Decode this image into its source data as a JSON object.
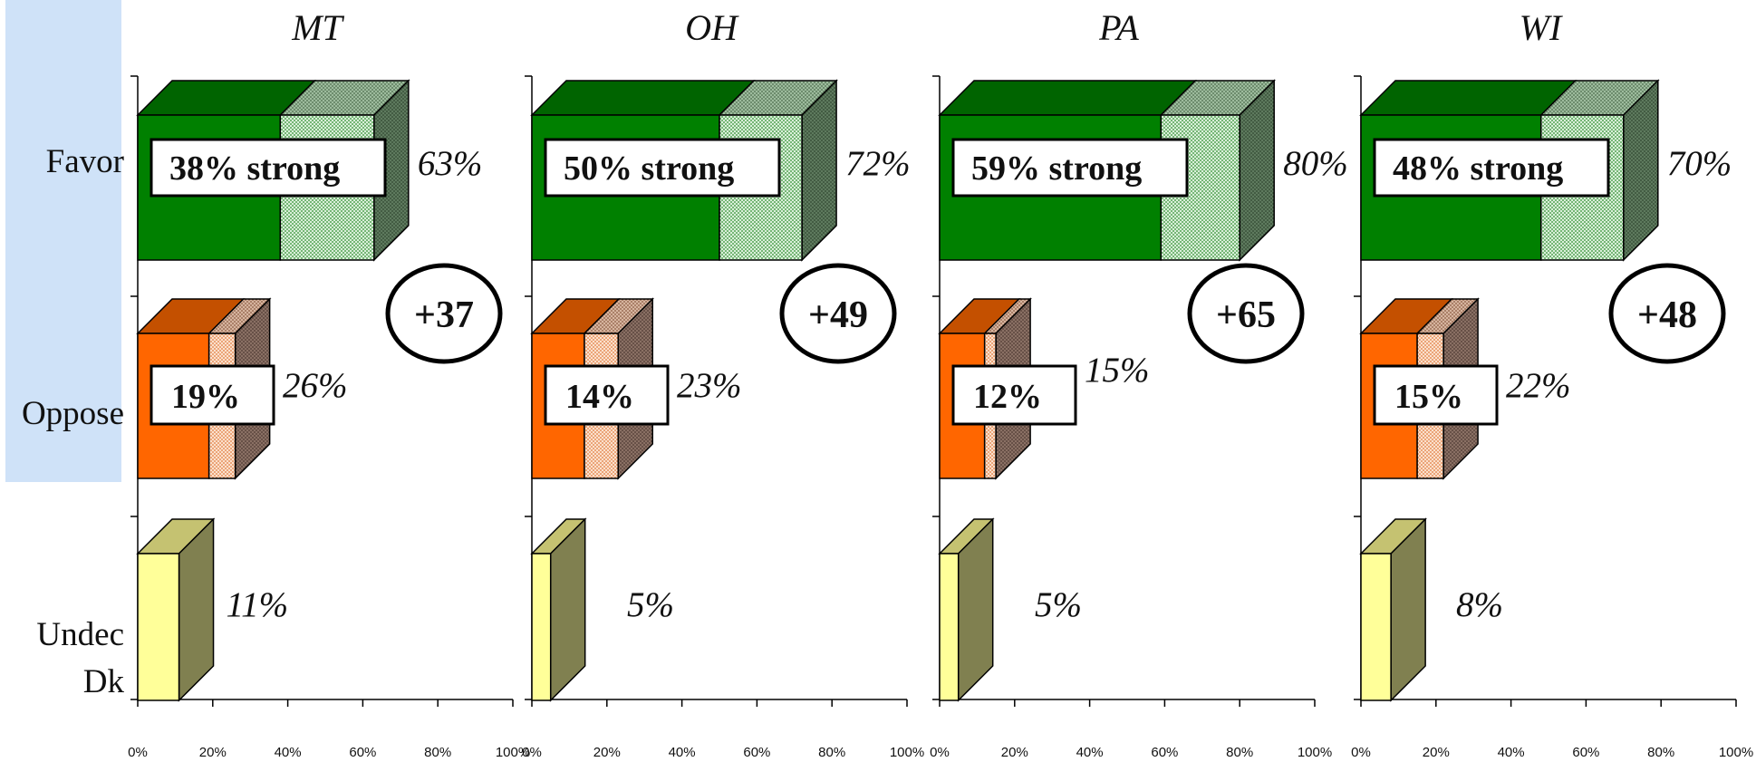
{
  "colors": {
    "favor_front": "#008000",
    "favor_top": "#006400",
    "favor_side": "#506b50",
    "favor_soft_front": "#c8e8c8",
    "favor_soft_top": "#8fb08f",
    "oppose_front": "#ff6600",
    "oppose_top": "#c45000",
    "oppose_side": "#7d6459",
    "oppose_soft_front": "#f7d0b8",
    "oppose_soft_top": "#c7a48f",
    "undec_front": "#ffff99",
    "undec_top": "#c5c271",
    "undec_side": "#808050",
    "category_highlight": "#cfe2f8"
  },
  "chart_data": {
    "type": "bar",
    "orientation": "horizontal",
    "style": "3d-stacked",
    "categories": [
      "Favor",
      "Oppose",
      "Undec\nDk"
    ],
    "category_lines": [
      [
        "Favor"
      ],
      [
        "Oppose"
      ],
      [
        "Undec",
        "Dk"
      ]
    ],
    "xlim": [
      0,
      100
    ],
    "xticks": [
      "0%",
      "20%",
      "40%",
      "60%",
      "80%",
      "100%"
    ],
    "grid": false,
    "panels": [
      {
        "title": "MT",
        "favor": {
          "total": 63,
          "strong": 38,
          "total_label": "63%",
          "strong_label": "38% strong"
        },
        "oppose": {
          "total": 26,
          "strong": 19,
          "total_label": "26%",
          "strong_label": "19%"
        },
        "undec": {
          "total": 11,
          "total_label": "11%"
        },
        "net_label": "+37"
      },
      {
        "title": "OH",
        "favor": {
          "total": 72,
          "strong": 50,
          "total_label": "72%",
          "strong_label": "50% strong"
        },
        "oppose": {
          "total": 23,
          "strong": 14,
          "total_label": "23%",
          "strong_label": "14%"
        },
        "undec": {
          "total": 5,
          "total_label": "5%"
        },
        "net_label": "+49"
      },
      {
        "title": "PA",
        "favor": {
          "total": 80,
          "strong": 59,
          "total_label": "80%",
          "strong_label": "59% strong"
        },
        "oppose": {
          "total": 15,
          "strong": 12,
          "total_label": "15%",
          "strong_label": "12%"
        },
        "undec": {
          "total": 5,
          "total_label": "5%"
        },
        "net_label": "+65"
      },
      {
        "title": "WI",
        "favor": {
          "total": 70,
          "strong": 48,
          "total_label": "70%",
          "strong_label": "48% strong"
        },
        "oppose": {
          "total": 22,
          "strong": 15,
          "total_label": "22%",
          "strong_label": "15%"
        },
        "undec": {
          "total": 8,
          "total_label": "8%"
        },
        "net_label": "+48"
      }
    ]
  }
}
